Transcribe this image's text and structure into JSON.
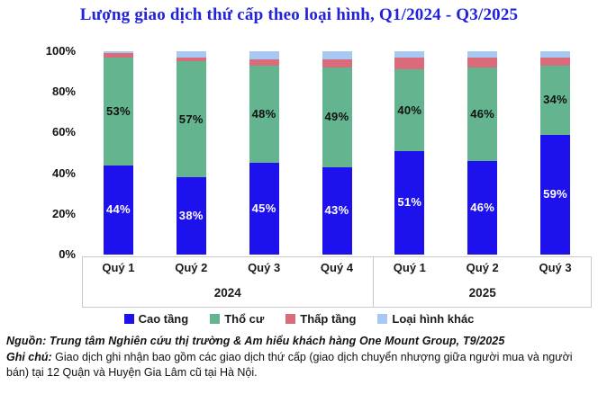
{
  "title": "Lượng giao dịch thứ cấp theo loại hình, Q1/2024 - Q3/2025",
  "colors": {
    "cao_tang": "#1d11ee",
    "tho_cu": "#63b48f",
    "thap_tang": "#d96b7b",
    "loai_hinh_khac": "#a7c8f3",
    "title_text": "#2222dd",
    "axis_border": "#c9c9c9"
  },
  "chart_data": {
    "type": "bar",
    "stacked": true,
    "unit": "%",
    "title": "Lượng giao dịch thứ cấp theo loại hình, Q1/2024 - Q3/2025",
    "categories": [
      "Quý 1",
      "Quý 2",
      "Quý 3",
      "Quý 4",
      "Quý 1",
      "Quý 2",
      "Quý 3"
    ],
    "category_groups": [
      {
        "label": "2024",
        "span": 4
      },
      {
        "label": "2025",
        "span": 3
      }
    ],
    "series": [
      {
        "name": "Cao tầng",
        "color": "#1d11ee",
        "values": [
          44,
          38,
          45,
          43,
          51,
          46,
          59
        ],
        "show_labels": true,
        "label_color": "#ffffff"
      },
      {
        "name": "Thổ cư",
        "color": "#63b48f",
        "values": [
          53,
          57,
          48,
          49,
          40,
          46,
          34
        ],
        "show_labels": true,
        "label_color": "#111111"
      },
      {
        "name": "Thấp tầng",
        "color": "#d96b7b",
        "values": [
          2,
          2,
          3,
          4,
          6,
          5,
          4
        ],
        "show_labels": false,
        "label_color": "#111111"
      },
      {
        "name": "Loại hình khác",
        "color": "#a7c8f3",
        "values": [
          1,
          3,
          4,
          4,
          3,
          3,
          3
        ],
        "show_labels": false,
        "label_color": "#111111"
      }
    ],
    "y_ticks": [
      "0%",
      "20%",
      "40%",
      "60%",
      "80%",
      "100%"
    ],
    "ylim": [
      0,
      100
    ],
    "grid": false,
    "legend_position": "bottom"
  },
  "footer": {
    "source": "Nguồn: Trung tâm Nghiên cứu thị trường & Am hiểu khách hàng One Mount Group, T9/2025",
    "note_label": "Ghi chú:",
    "note_rest": " Giao dịch ghi nhận bao gồm các giao dịch thứ cấp (giao dịch chuyển nhượng giữa người mua và người bán) tại 12 Quận và Huyện Gia Lâm cũ tại Hà Nội."
  }
}
